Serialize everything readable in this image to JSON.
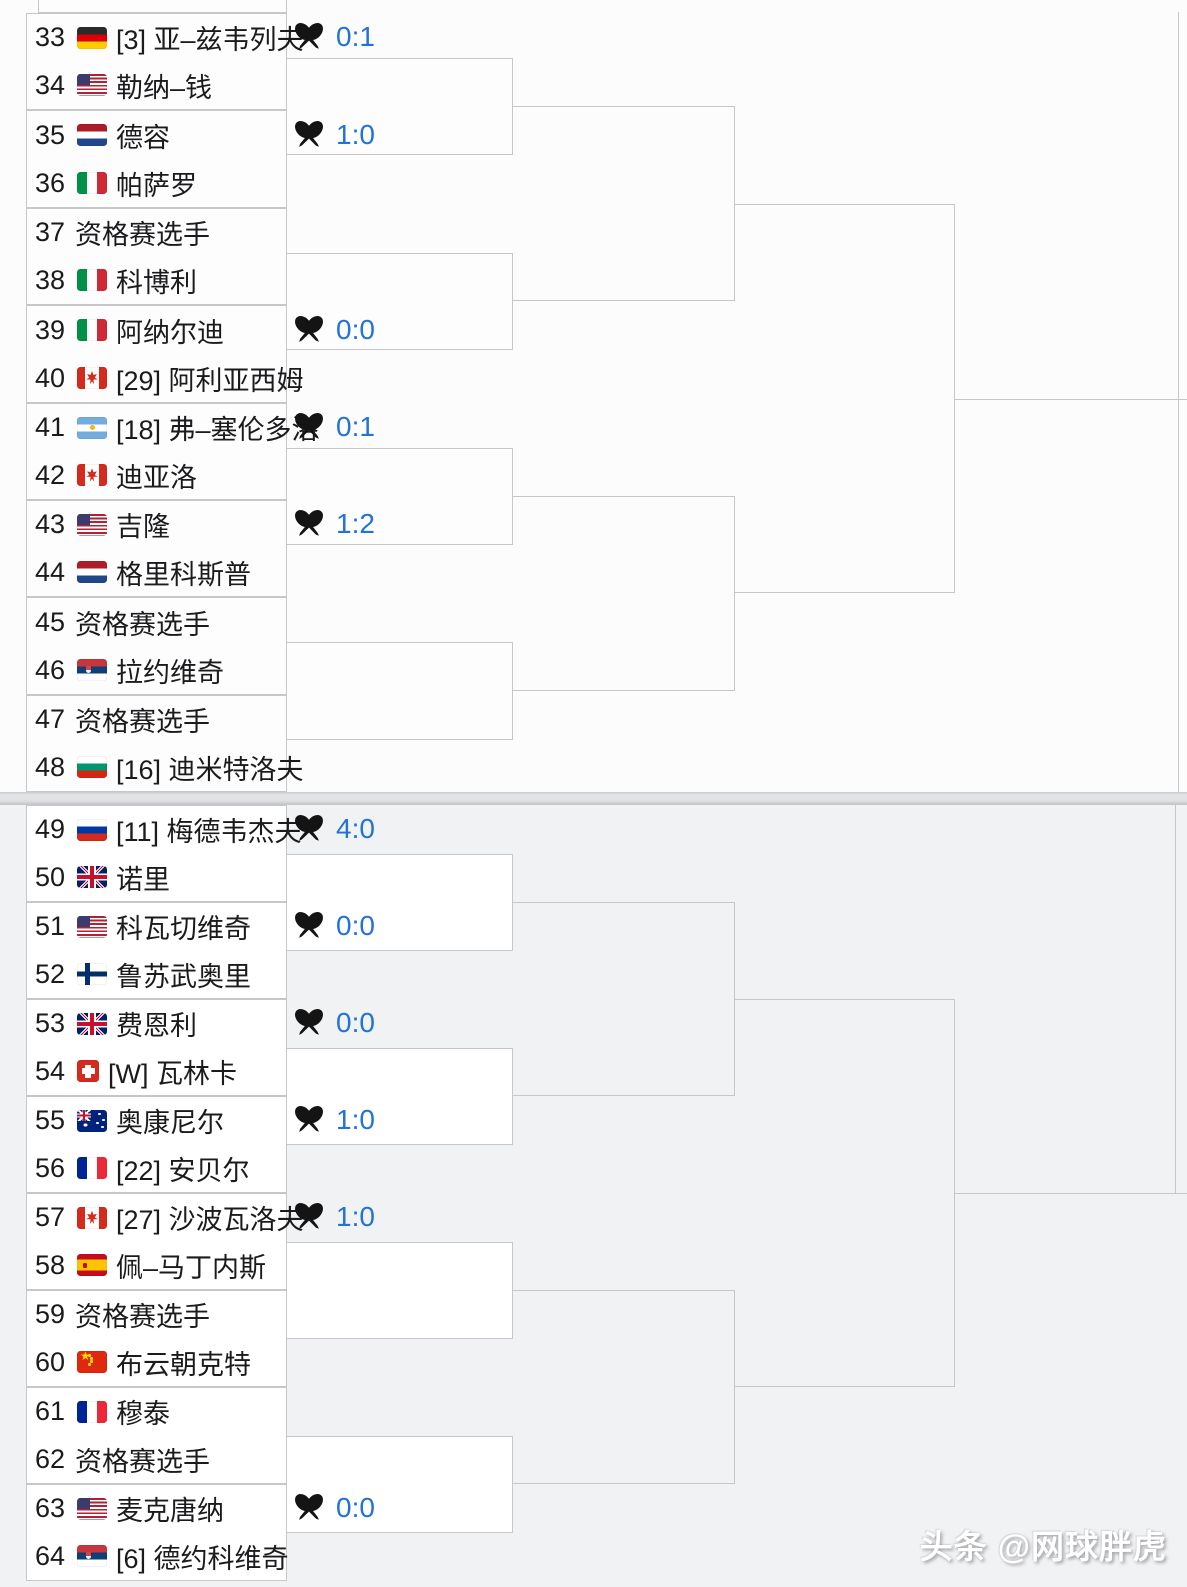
{
  "watermark": "头条 @网球胖虎",
  "colors": {
    "score_blue": "#2272d8",
    "line_gray": "#c6c7ca",
    "text_dark": "#1b1b1d",
    "bottom_bg": "#f1f2f4"
  },
  "sections": [
    {
      "name": "top",
      "matches": [
        {
          "score": "0:1",
          "players": [
            {
              "num": "33",
              "flag": "germany",
              "label": "[3] 亚–兹韦列夫"
            },
            {
              "num": "34",
              "flag": "usa",
              "label": "勒纳–钱"
            }
          ]
        },
        {
          "score": "1:0",
          "players": [
            {
              "num": "35",
              "flag": "netherlands",
              "label": "德容"
            },
            {
              "num": "36",
              "flag": "italy",
              "label": "帕萨罗"
            }
          ]
        },
        {
          "score": null,
          "players": [
            {
              "num": "37",
              "flag": null,
              "label": "资格赛选手"
            },
            {
              "num": "38",
              "flag": "italy",
              "label": "科博利"
            }
          ]
        },
        {
          "score": "0:0",
          "players": [
            {
              "num": "39",
              "flag": "italy",
              "label": "阿纳尔迪"
            },
            {
              "num": "40",
              "flag": "canada",
              "label": "[29] 阿利亚西姆"
            }
          ]
        },
        {
          "score": "0:1",
          "players": [
            {
              "num": "41",
              "flag": "argentina",
              "label": "[18] 弗–塞伦多洛"
            },
            {
              "num": "42",
              "flag": "canada",
              "label": "迪亚洛"
            }
          ]
        },
        {
          "score": "1:2",
          "players": [
            {
              "num": "43",
              "flag": "usa",
              "label": "吉隆"
            },
            {
              "num": "44",
              "flag": "netherlands",
              "label": "格里科斯普"
            }
          ]
        },
        {
          "score": null,
          "players": [
            {
              "num": "45",
              "flag": null,
              "label": "资格赛选手"
            },
            {
              "num": "46",
              "flag": "serbia",
              "label": "拉约维奇"
            }
          ]
        },
        {
          "score": null,
          "players": [
            {
              "num": "47",
              "flag": null,
              "label": "资格赛选手"
            },
            {
              "num": "48",
              "flag": "bulgaria",
              "label": "[16] 迪米特洛夫"
            }
          ]
        }
      ]
    },
    {
      "name": "bottom",
      "matches": [
        {
          "score": "4:0",
          "players": [
            {
              "num": "49",
              "flag": "russia",
              "label": "[11] 梅德韦杰夫"
            },
            {
              "num": "50",
              "flag": "uk",
              "label": "诺里"
            }
          ]
        },
        {
          "score": "0:0",
          "players": [
            {
              "num": "51",
              "flag": "usa",
              "label": "科瓦切维奇"
            },
            {
              "num": "52",
              "flag": "finland",
              "label": "鲁苏武奥里"
            }
          ]
        },
        {
          "score": "0:0",
          "players": [
            {
              "num": "53",
              "flag": "uk",
              "label": "费恩利"
            },
            {
              "num": "54",
              "flag": "switzerland",
              "label": "[W] 瓦林卡"
            }
          ]
        },
        {
          "score": "1:0",
          "players": [
            {
              "num": "55",
              "flag": "australia",
              "label": "奥康尼尔"
            },
            {
              "num": "56",
              "flag": "france",
              "label": "[22] 安贝尔"
            }
          ]
        },
        {
          "score": "1:0",
          "players": [
            {
              "num": "57",
              "flag": "canada",
              "label": "[27] 沙波瓦洛夫"
            },
            {
              "num": "58",
              "flag": "spain",
              "label": "佩–马丁内斯"
            }
          ]
        },
        {
          "score": null,
          "players": [
            {
              "num": "59",
              "flag": null,
              "label": "资格赛选手"
            },
            {
              "num": "60",
              "flag": "china",
              "label": "布云朝克特"
            }
          ]
        },
        {
          "score": null,
          "players": [
            {
              "num": "61",
              "flag": "france",
              "label": "穆泰"
            },
            {
              "num": "62",
              "flag": null,
              "label": "资格赛选手"
            }
          ]
        },
        {
          "score": "0:0",
          "players": [
            {
              "num": "63",
              "flag": "usa",
              "label": "麦克唐纳"
            },
            {
              "num": "64",
              "flag": "serbia",
              "label": "[6] 德约科维奇"
            }
          ]
        }
      ]
    }
  ]
}
